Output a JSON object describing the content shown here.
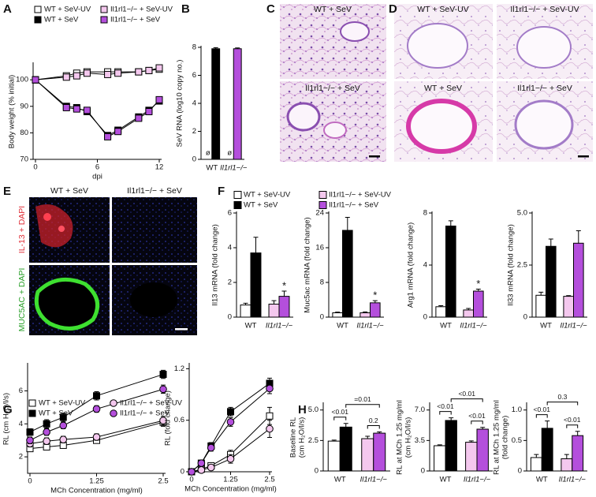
{
  "panel_labels": [
    "A",
    "B",
    "C",
    "D",
    "E",
    "F",
    "G",
    "H"
  ],
  "micrographs": {
    "C": [
      "WT + SeV",
      "Il1rl1−/− + SeV"
    ],
    "D": [
      "WT + SeV-UV",
      "Il1rl1−/− + SeV-UV",
      "WT + SeV",
      "Il1rl1−/− + SeV"
    ],
    "E": {
      "columns": [
        "WT + SeV",
        "Il1rl1−/− + SeV"
      ],
      "rows": [
        "IL-13 + DAPI",
        "MUC5AC + DAPI"
      ]
    }
  },
  "chart_data": [
    {
      "type": "line",
      "x": [
        0,
        3,
        4,
        5,
        7,
        8,
        10,
        11,
        12
      ],
      "xlim": [
        0,
        12
      ],
      "xticks": [
        0,
        6,
        12
      ],
      "ylim": [
        70,
        106
      ],
      "yticks": [
        70,
        80,
        90,
        100
      ],
      "xlabel": "dpi",
      "ylabel": "Body weight (% initial)",
      "legend": "top",
      "series": [
        {
          "name": "WT + SeV-UV",
          "color": "#ffffff",
          "marker": "square",
          "values": [
            100,
            101.5,
            102.5,
            103,
            103,
            103,
            103,
            103.5,
            104
          ]
        },
        {
          "name": "WT + SeV",
          "color": "#000000",
          "marker": "square",
          "values": [
            100,
            90,
            89.5,
            88,
            79,
            81,
            86,
            88.5,
            92
          ]
        },
        {
          "name": "Il1rl1−/− + SeV-UV",
          "color": "#f4c8ee",
          "marker": "square",
          "values": [
            100,
            101,
            101.5,
            102.5,
            102,
            102.5,
            103,
            103.5,
            104.5
          ]
        },
        {
          "name": "Il1rl1−/− + SeV",
          "color": "#b44fdc",
          "marker": "square",
          "values": [
            100,
            89.5,
            89,
            88.5,
            78.5,
            80.5,
            85.5,
            88,
            92.5
          ]
        }
      ]
    },
    {
      "type": "bar",
      "categories": [
        "WT",
        "Il1rl1−/−"
      ],
      "ylim": [
        0,
        8
      ],
      "yticks": [
        0,
        2,
        4,
        6,
        8
      ],
      "ylabel": "SeV RNA (log10 copy no.)",
      "series": [
        {
          "color": "#ffffff",
          "values": [
            null,
            null
          ],
          "note": "ø"
        },
        {
          "color": "#000000",
          "values": [
            7.9,
            null
          ],
          "errors": [
            0.08,
            null
          ]
        },
        {
          "color": "#f4c8ee",
          "values": [
            null,
            null
          ],
          "note": "ø"
        },
        {
          "color": "#b44fdc",
          "values": [
            null,
            7.9
          ],
          "errors": [
            null,
            0.06
          ]
        }
      ]
    },
    {
      "type": "bar",
      "categories": [
        "WT",
        "Il1rl1−/−"
      ],
      "ylim": [
        0,
        6
      ],
      "yticks": [
        0,
        2,
        4,
        6
      ],
      "ylabel": "Il13 mRNA (fold change)",
      "legend": "top",
      "series": [
        {
          "name": "WT + SeV-UV",
          "color": "#ffffff",
          "values": [
            0.7,
            null
          ],
          "errors": [
            0.1,
            null
          ]
        },
        {
          "name": "WT + SeV",
          "color": "#000000",
          "values": [
            3.7,
            null
          ],
          "errors": [
            0.9,
            null
          ]
        },
        {
          "name": "Il1rl1−/− + SeV-UV",
          "color": "#f4c8ee",
          "values": [
            null,
            0.75
          ],
          "errors": [
            null,
            0.2
          ]
        },
        {
          "name": "Il1rl1−/− + SeV",
          "color": "#b44fdc",
          "values": [
            null,
            1.2
          ],
          "errors": [
            null,
            0.3
          ],
          "sig": [
            null,
            "*"
          ]
        }
      ]
    },
    {
      "type": "bar",
      "categories": [
        "WT",
        "Il1rl1−/−"
      ],
      "ylim": [
        0,
        24
      ],
      "yticks": [
        0,
        8,
        16,
        24
      ],
      "ylabel": "Muc5ac mRNA (fold change)",
      "series": [
        {
          "color": "#ffffff",
          "values": [
            1.0,
            null
          ],
          "errors": [
            0.15,
            null
          ]
        },
        {
          "color": "#000000",
          "values": [
            20,
            null
          ],
          "errors": [
            3,
            null
          ]
        },
        {
          "color": "#f4c8ee",
          "values": [
            null,
            1.0
          ],
          "errors": [
            null,
            0.2
          ]
        },
        {
          "color": "#b44fdc",
          "values": [
            null,
            3.3
          ],
          "errors": [
            null,
            0.5
          ],
          "sig": [
            null,
            "*"
          ]
        }
      ]
    },
    {
      "type": "bar",
      "categories": [
        "WT",
        "Il1rl1−/−"
      ],
      "ylim": [
        0,
        8
      ],
      "yticks": [
        0,
        4,
        8
      ],
      "ylabel": "Arg1 mRNA (fold change)",
      "series": [
        {
          "color": "#ffffff",
          "values": [
            0.8,
            null
          ],
          "errors": [
            0.08,
            null
          ]
        },
        {
          "color": "#000000",
          "values": [
            7.0,
            null
          ],
          "errors": [
            0.4,
            null
          ]
        },
        {
          "color": "#f4c8ee",
          "values": [
            null,
            0.55
          ],
          "errors": [
            null,
            0.12
          ]
        },
        {
          "color": "#b44fdc",
          "values": [
            null,
            2.0
          ],
          "errors": [
            null,
            0.15
          ],
          "sig": [
            null,
            "*"
          ]
        }
      ]
    },
    {
      "type": "bar",
      "categories": [
        "WT",
        "Il1rl1−/−"
      ],
      "ylim": [
        0,
        5
      ],
      "yticks": [
        0,
        2.5,
        {
          "value": 5,
          "label": "5.0"
        }
      ],
      "ylabel": "Il33 mRNA (fold change)",
      "series": [
        {
          "color": "#ffffff",
          "values": [
            1.05,
            null
          ],
          "errors": [
            0.15,
            null
          ]
        },
        {
          "color": "#000000",
          "values": [
            3.4,
            null
          ],
          "errors": [
            0.35,
            null
          ]
        },
        {
          "color": "#f4c8ee",
          "values": [
            null,
            1.0
          ],
          "errors": [
            null,
            0.03
          ]
        },
        {
          "color": "#b44fdc",
          "values": [
            null,
            3.55
          ],
          "errors": [
            null,
            0.6
          ]
        }
      ]
    },
    {
      "type": "line",
      "x": [
        0,
        0.3125,
        0.625,
        1.25,
        2.5
      ],
      "xlim": [
        0,
        2.5
      ],
      "xticks": [
        0,
        1.25,
        2.5
      ],
      "ylim": [
        1,
        7.6
      ],
      "yticks": [
        2,
        4,
        6
      ],
      "xlabel": "MCh Concentration (mg/ml)",
      "ylabel": "RL (cm H₂O/l/s)",
      "legend": "top",
      "series": [
        {
          "name": "WT + SeV-UV",
          "color": "#ffffff",
          "marker": "square",
          "values": [
            2.5,
            2.6,
            2.7,
            3.0,
            4.1
          ],
          "errors": [
            0.15,
            0.15,
            0.15,
            0.15,
            0.25
          ]
        },
        {
          "name": "WT + SeV",
          "color": "#000000",
          "marker": "square",
          "values": [
            3.5,
            4.0,
            4.4,
            5.7,
            7.0
          ],
          "errors": [
            0.2,
            0.25,
            0.25,
            0.25,
            0.25
          ]
        },
        {
          "name": "Il1rl1−/− + SeV-UV",
          "color": "#f4c8ee",
          "marker": "circle",
          "values": [
            2.8,
            2.95,
            3.05,
            3.2,
            4.2
          ],
          "errors": [
            0.2,
            0.2,
            0.2,
            0.2,
            0.25
          ]
        },
        {
          "name": "Il1rl1−/− + SeV",
          "color": "#b44fdc",
          "marker": "circle",
          "values": [
            3.0,
            3.5,
            3.9,
            4.9,
            6.1
          ],
          "errors": [
            0.2,
            0.2,
            0.2,
            0.2,
            0.25
          ]
        }
      ]
    },
    {
      "type": "line",
      "x": [
        0,
        0.3125,
        0.625,
        1.25,
        2.5
      ],
      "xlim": [
        0,
        2.5
      ],
      "xticks": [
        0,
        1.25,
        2.5
      ],
      "ylim": [
        0,
        1.25
      ],
      "yticks": [
        0,
        0.6,
        1.2
      ],
      "xlabel": "MCh Concentration (mg/ml)",
      "ylabel": "RL (fold change)",
      "series": [
        {
          "color": "#ffffff",
          "marker": "square",
          "values": [
            0,
            0.03,
            0.07,
            0.2,
            0.65
          ],
          "errors": [
            0,
            0.02,
            0.03,
            0.05,
            0.1
          ]
        },
        {
          "color": "#000000",
          "marker": "square",
          "values": [
            0,
            0.1,
            0.3,
            0.7,
            1.03
          ],
          "errors": [
            0,
            0.03,
            0.04,
            0.05,
            0.06
          ]
        },
        {
          "color": "#f4c8ee",
          "marker": "circle",
          "values": [
            0,
            0.02,
            0.05,
            0.15,
            0.5
          ],
          "errors": [
            0,
            0.02,
            0.03,
            0.05,
            0.1
          ]
        },
        {
          "color": "#b44fdc",
          "marker": "circle",
          "values": [
            0,
            0.1,
            0.28,
            0.58,
            0.97
          ],
          "errors": [
            0,
            0.03,
            0.04,
            0.05,
            0.06
          ]
        }
      ]
    },
    {
      "type": "bar",
      "categories": [
        "WT",
        "Il1rl1−/−"
      ],
      "ylim": [
        0,
        5.5
      ],
      "yticks": [
        0,
        2.5,
        {
          "value": 5,
          "label": "5.0"
        }
      ],
      "ylabel": [
        "Baseline RL",
        "(cm H₂O/l/s)"
      ],
      "comparisons": [
        "<0.01",
        "0.2",
        "=0.01"
      ],
      "series": [
        {
          "color": "#ffffff",
          "values": [
            2.45,
            null
          ],
          "errors": [
            0.08,
            null
          ]
        },
        {
          "color": "#000000",
          "values": [
            3.6,
            null
          ],
          "errors": [
            0.3,
            null
          ]
        },
        {
          "color": "#f4c8ee",
          "values": [
            null,
            2.65
          ],
          "errors": [
            null,
            0.2
          ]
        },
        {
          "color": "#b44fdc",
          "values": [
            null,
            3.1
          ],
          "errors": [
            null,
            0.1
          ]
        }
      ]
    },
    {
      "type": "bar",
      "categories": [
        "WT",
        "Il1rl1−/−"
      ],
      "ylim": [
        0,
        7.7
      ],
      "yticks": [
        0,
        3.5,
        {
          "value": 7,
          "label": "7.0"
        }
      ],
      "ylabel": [
        "RL at MCh 1.25 mg/ml",
        "(cm H₂O/l/s)"
      ],
      "comparisons": [
        "<0.01",
        "<0.01",
        "<0.01"
      ],
      "series": [
        {
          "color": "#ffffff",
          "values": [
            2.9,
            null
          ],
          "errors": [
            0.1,
            null
          ]
        },
        {
          "color": "#000000",
          "values": [
            5.8,
            null
          ],
          "errors": [
            0.3,
            null
          ]
        },
        {
          "color": "#f4c8ee",
          "values": [
            null,
            3.3
          ],
          "errors": [
            null,
            0.15
          ]
        },
        {
          "color": "#b44fdc",
          "values": [
            null,
            4.8
          ],
          "errors": [
            null,
            0.2
          ]
        }
      ]
    },
    {
      "type": "bar",
      "categories": [
        "WT",
        "Il1rl1−/−"
      ],
      "ylim": [
        0,
        1.1
      ],
      "yticks": [
        0,
        0.5,
        {
          "value": 1,
          "label": "1.0"
        }
      ],
      "ylabel": [
        "RL at MCh 1.25 mg/ml",
        "(fold change)"
      ],
      "comparisons": [
        "<0.01",
        "<0.01",
        "0.3"
      ],
      "series": [
        {
          "color": "#ffffff",
          "values": [
            0.22,
            null
          ],
          "errors": [
            0.05,
            null
          ]
        },
        {
          "color": "#000000",
          "values": [
            0.7,
            null
          ],
          "errors": [
            0.12,
            null
          ]
        },
        {
          "color": "#f4c8ee",
          "values": [
            null,
            0.2
          ],
          "errors": [
            null,
            0.07
          ]
        },
        {
          "color": "#b44fdc",
          "values": [
            null,
            0.58
          ],
          "errors": [
            null,
            0.07
          ]
        }
      ]
    }
  ]
}
